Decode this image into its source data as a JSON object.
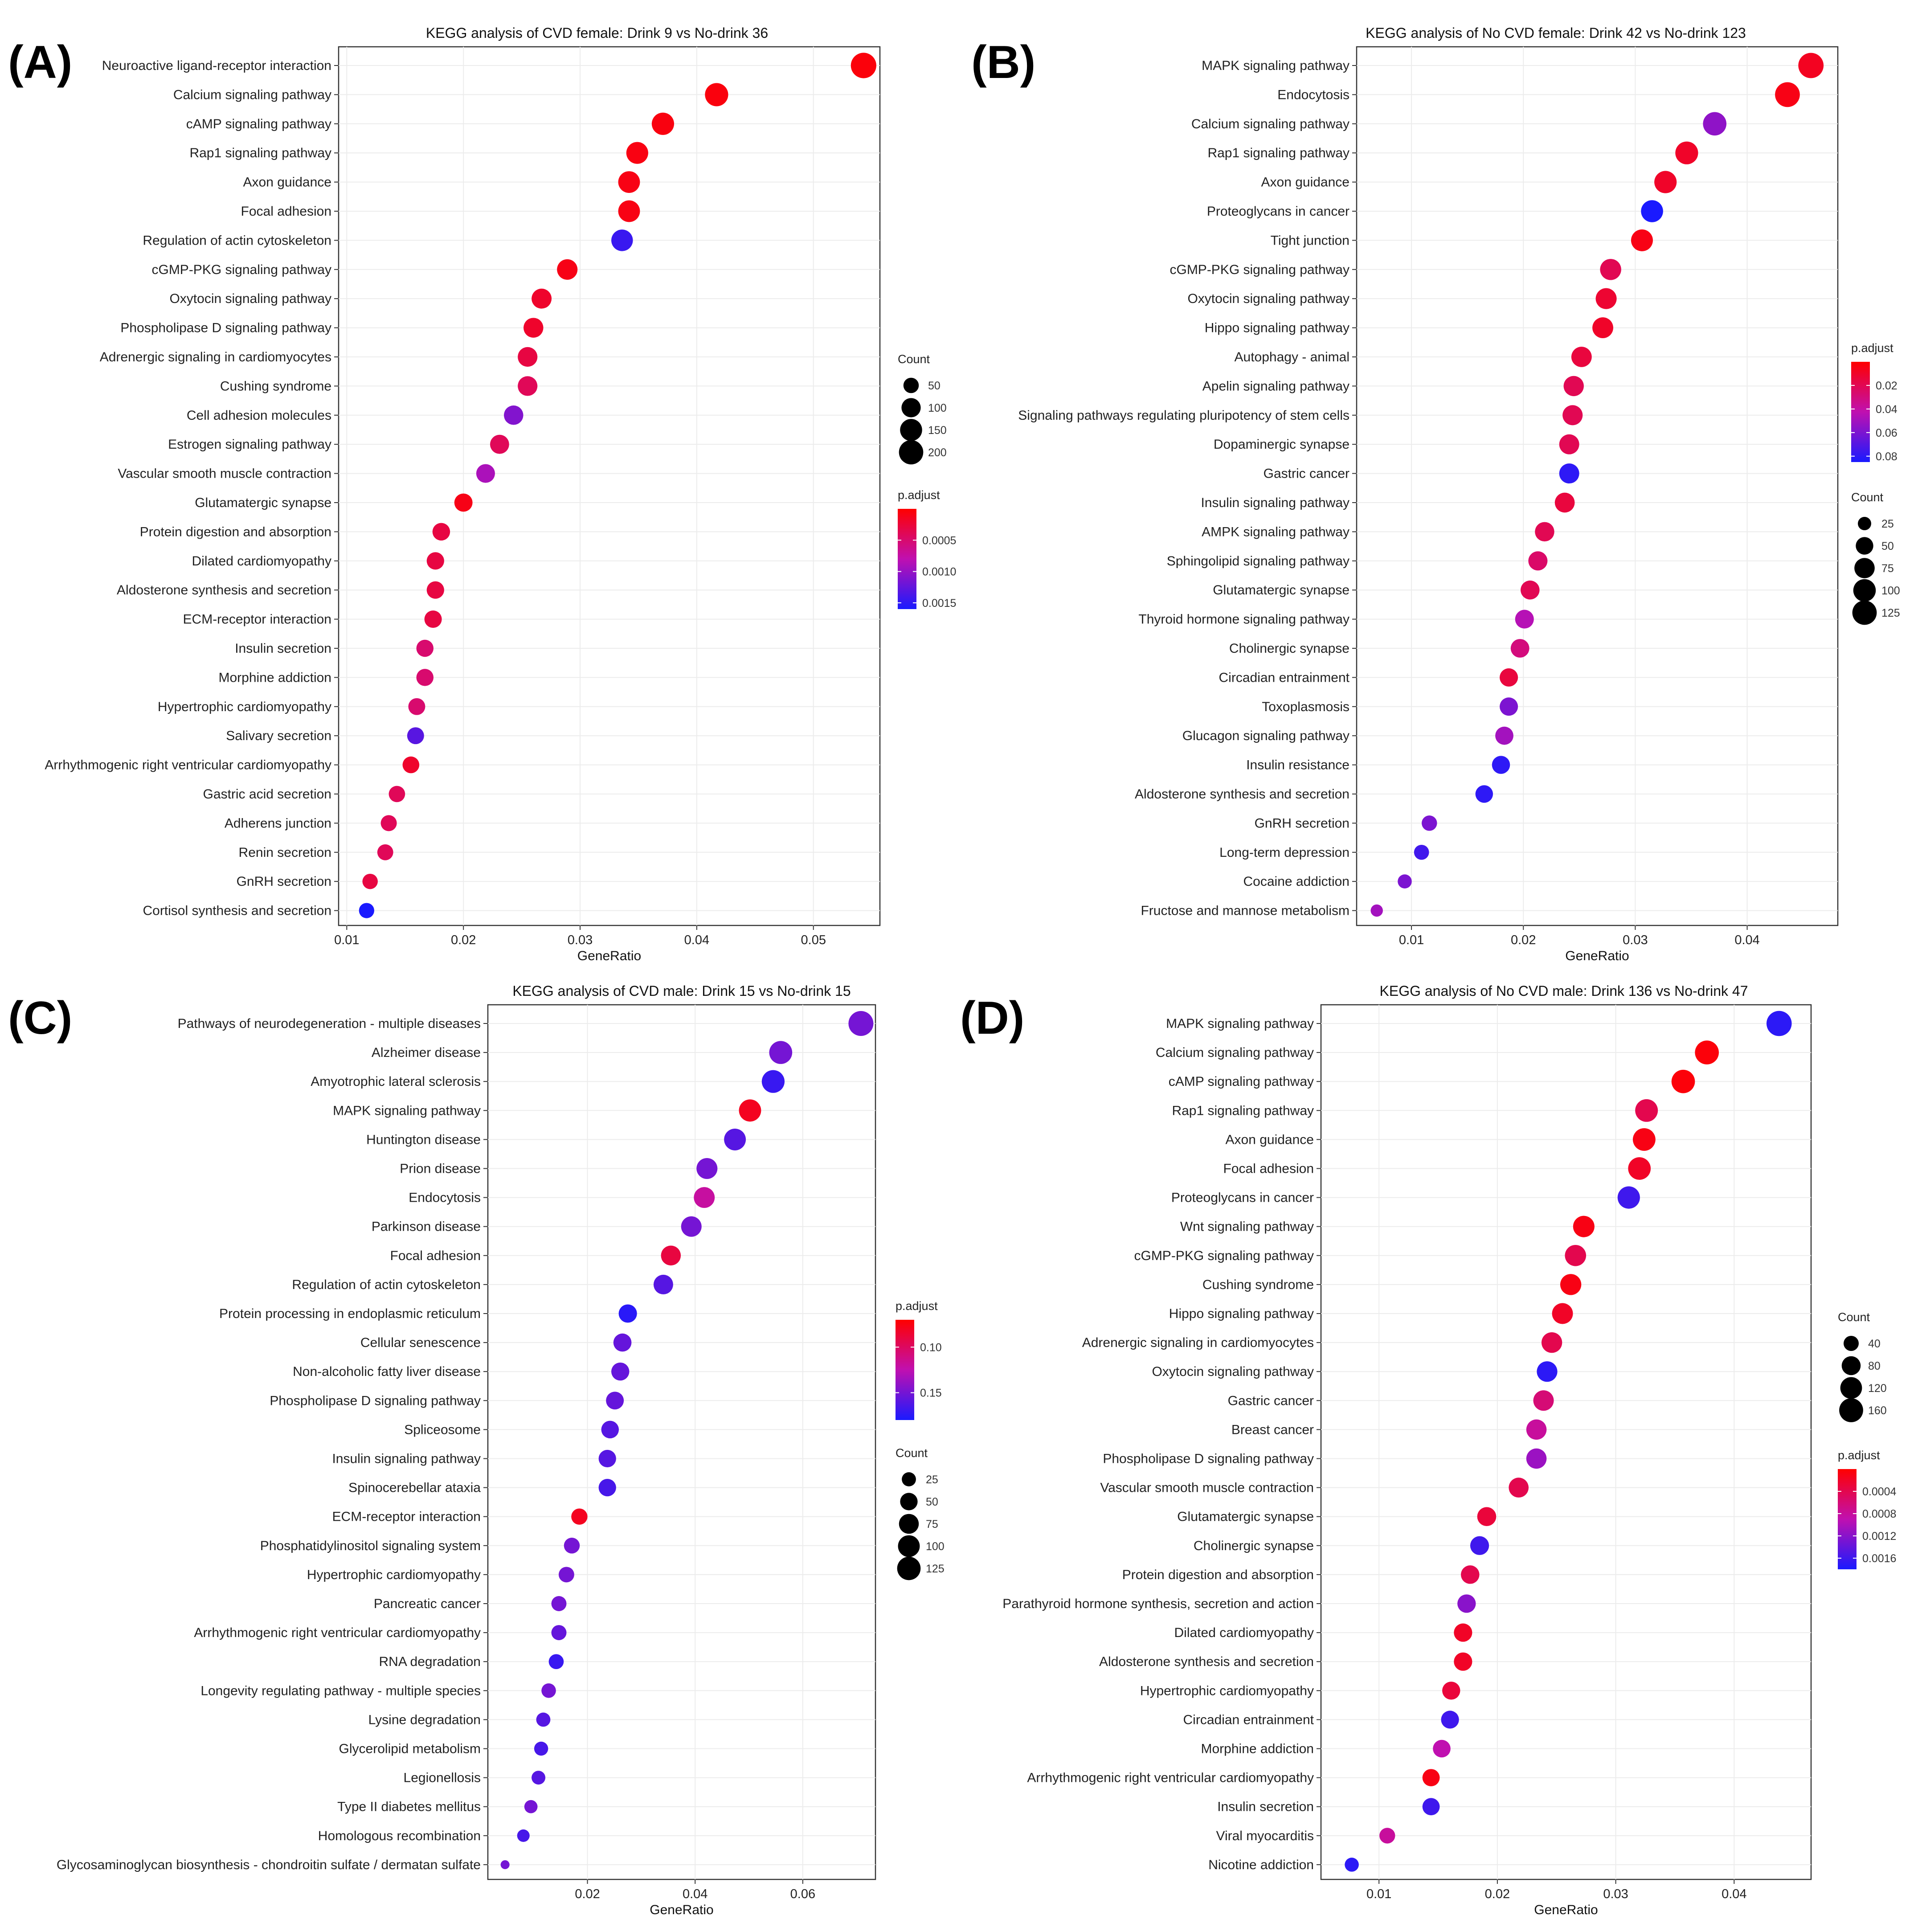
{
  "colors": {
    "low_p": "#ff0000",
    "mid_p": "#c010b0",
    "high_p": "#1a1aff",
    "grid": "#ececec"
  },
  "chart_data": [
    {
      "panel_label": "(A)",
      "type": "scatter",
      "title": "KEGG analysis of CVD female: Drink 9 vs No-drink 36",
      "xlabel": "GeneRatio",
      "xlim": [
        0.0093,
        0.0557
      ],
      "xticks": [
        0.01,
        0.02,
        0.03,
        0.04,
        0.05
      ],
      "xtick_labels": [
        "0.01",
        "0.02",
        "0.03",
        "0.04",
        "0.05"
      ],
      "legend_order": [
        "size",
        "color"
      ],
      "size_legend": {
        "title": "Count",
        "values": [
          50,
          100,
          150,
          200
        ],
        "labels": [
          "50",
          "100",
          "150",
          "200"
        ],
        "range": [
          18,
          215
        ]
      },
      "color_legend": {
        "title": "p.adjust",
        "low": 0.0,
        "high": 0.0016,
        "ticks": [
          0.0005,
          0.001,
          0.0015
        ],
        "tick_labels": [
          "0.0005",
          "0.0010",
          "0.0015"
        ]
      },
      "categories": [
        "Neuroactive ligand-receptor interaction",
        "Calcium signaling pathway",
        "cAMP signaling pathway",
        "Rap1 signaling pathway",
        "Axon guidance",
        "Focal adhesion",
        "Regulation of actin cytoskeleton",
        "cGMP-PKG signaling pathway",
        "Oxytocin signaling pathway",
        "Phospholipase D signaling pathway",
        "Adrenergic signaling in cardiomyocytes",
        "Cushing syndrome",
        "Cell adhesion molecules",
        "Estrogen signaling pathway",
        "Vascular smooth muscle contraction",
        "Glutamatergic synapse",
        "Protein digestion and absorption",
        "Dilated cardiomyopathy",
        "Aldosterone synthesis and secretion",
        "ECM-receptor interaction",
        "Insulin secretion",
        "Morphine addiction",
        "Hypertrophic cardiomyopathy",
        "Salivary secretion",
        "Arrhythmogenic right ventricular cardiomyopathy",
        "Gastric acid secretion",
        "Adherens junction",
        "Renin secretion",
        "GnRH secretion",
        "Cortisol synthesis and secretion"
      ],
      "gene_ratio": [
        0.0543,
        0.0417,
        0.0371,
        0.0349,
        0.0342,
        0.0342,
        0.0336,
        0.0289,
        0.0267,
        0.026,
        0.0255,
        0.0255,
        0.0243,
        0.0231,
        0.0219,
        0.02,
        0.0181,
        0.0176,
        0.0176,
        0.0174,
        0.0167,
        0.0167,
        0.016,
        0.0159,
        0.0155,
        0.0143,
        0.0136,
        0.0133,
        0.012,
        0.0117
      ],
      "count": [
        228,
        175,
        156,
        147,
        144,
        144,
        141,
        121,
        112,
        109,
        107,
        107,
        102,
        97,
        92,
        84,
        76,
        74,
        74,
        73,
        70,
        70,
        67,
        67,
        65,
        60,
        57,
        56,
        50,
        49
      ],
      "p_adjust": [
        5e-05,
        6e-05,
        7e-05,
        8e-05,
        9e-05,
        9e-05,
        0.00145,
        0.0001,
        0.0002,
        0.0002,
        0.0003,
        0.0004,
        0.0011,
        0.0004,
        0.0009,
        0.0001,
        0.0003,
        0.0003,
        0.0003,
        0.0003,
        0.0005,
        0.0005,
        0.0005,
        0.0013,
        0.0002,
        0.0004,
        0.0004,
        0.0004,
        0.0003,
        0.0016
      ]
    },
    {
      "panel_label": "(B)",
      "type": "scatter",
      "title": "KEGG analysis of No CVD female: Drink 42 vs No-drink 123",
      "xlabel": "GeneRatio",
      "xlim": [
        0.0051,
        0.0481
      ],
      "xticks": [
        0.01,
        0.02,
        0.03,
        0.04
      ],
      "xtick_labels": [
        "0.01",
        "0.02",
        "0.03",
        "0.04"
      ],
      "legend_order": [
        "color",
        "size"
      ],
      "size_legend": {
        "title": "Count",
        "values": [
          25,
          50,
          75,
          100,
          125
        ],
        "labels": [
          "25",
          "50",
          "75",
          "100",
          "125"
        ],
        "range": [
          16,
          133
        ]
      },
      "color_legend": {
        "title": "p.adjust",
        "low": 0.0,
        "high": 0.085,
        "ticks": [
          0.02,
          0.04,
          0.06,
          0.08
        ],
        "tick_labels": [
          "0.02",
          "0.04",
          "0.06",
          "0.08"
        ]
      },
      "categories": [
        "MAPK signaling pathway",
        "Endocytosis",
        "Calcium signaling pathway",
        "Rap1 signaling pathway",
        "Axon guidance",
        "Proteoglycans in cancer",
        "Tight junction",
        "cGMP-PKG signaling pathway",
        "Oxytocin signaling pathway",
        "Hippo signaling pathway",
        "Autophagy - animal",
        "Apelin signaling pathway",
        "Signaling pathways regulating pluripotency of stem cells",
        "Dopaminergic synapse",
        "Gastric cancer",
        "Insulin signaling pathway",
        "AMPK signaling pathway",
        "Sphingolipid signaling pathway",
        "Glutamatergic synapse",
        "Thyroid hormone signaling pathway",
        "Cholinergic synapse",
        "Circadian entrainment",
        "Toxoplasmosis",
        "Glucagon signaling pathway",
        "Insulin resistance",
        "Aldosterone synthesis and secretion",
        "GnRH secretion",
        "Long-term depression",
        "Cocaine addiction",
        "Fructose and mannose metabolism"
      ],
      "gene_ratio": [
        0.0457,
        0.0436,
        0.0371,
        0.0346,
        0.0327,
        0.0315,
        0.0306,
        0.0278,
        0.0274,
        0.0271,
        0.0252,
        0.0245,
        0.0244,
        0.0241,
        0.0241,
        0.0237,
        0.0219,
        0.0213,
        0.0206,
        0.0201,
        0.0197,
        0.0187,
        0.0187,
        0.0183,
        0.018,
        0.0165,
        0.0116,
        0.0109,
        0.0094,
        0.0069
      ],
      "count": [
        138,
        131,
        112,
        104,
        98,
        95,
        92,
        84,
        82,
        81,
        76,
        74,
        73,
        72,
        72,
        71,
        66,
        64,
        62,
        60,
        59,
        56,
        56,
        55,
        54,
        50,
        35,
        33,
        28,
        21
      ],
      "p_adjust": [
        0.008,
        0.005,
        0.055,
        0.01,
        0.01,
        0.085,
        0.005,
        0.02,
        0.012,
        0.01,
        0.015,
        0.02,
        0.02,
        0.02,
        0.08,
        0.015,
        0.02,
        0.025,
        0.02,
        0.045,
        0.03,
        0.015,
        0.06,
        0.05,
        0.08,
        0.08,
        0.06,
        0.075,
        0.06,
        0.05
      ]
    },
    {
      "panel_label": "(C)",
      "type": "scatter",
      "title": "KEGG analysis of CVD male: Drink 15 vs No-drink 15",
      "xlabel": "GeneRatio",
      "xlim": [
        0.0015,
        0.0735
      ],
      "xticks": [
        0.02,
        0.04,
        0.06
      ],
      "xtick_labels": [
        "0.02",
        "0.04",
        "0.06"
      ],
      "legend_order": [
        "color",
        "size"
      ],
      "size_legend": {
        "title": "Count",
        "values": [
          25,
          50,
          75,
          100,
          125
        ],
        "labels": [
          "25",
          "50",
          "75",
          "100",
          "125"
        ],
        "range": [
          10,
          150
        ]
      },
      "color_legend": {
        "title": "p.adjust",
        "low": 0.07,
        "high": 0.18,
        "ticks": [
          0.1,
          0.15
        ],
        "tick_labels": [
          "0.10",
          "0.15"
        ]
      },
      "categories": [
        "Pathways of neurodegeneration - multiple diseases",
        "Alzheimer disease",
        "Amyotrophic lateral sclerosis",
        "MAPK signaling pathway",
        "Huntington disease",
        "Prion disease",
        "Endocytosis",
        "Parkinson disease",
        "Focal adhesion",
        "Regulation of actin cytoskeleton",
        "Protein processing in endoplasmic reticulum",
        "Cellular senescence",
        "Non-alcoholic fatty liver disease",
        "Phospholipase D signaling pathway",
        "Spliceosome",
        "Insulin signaling pathway",
        "Spinocerebellar ataxia",
        "ECM-receptor interaction",
        "Phosphatidylinositol signaling system",
        "Hypertrophic cardiomyopathy",
        "Pancreatic cancer",
        "Arrhythmogenic right ventricular cardiomyopathy",
        "RNA degradation",
        "Longevity regulating pathway - multiple species",
        "Lysine degradation",
        "Glycerolipid metabolism",
        "Legionellosis",
        "Type II diabetes mellitus",
        "Homologous recombination",
        "Glycosaminoglycan biosynthesis - chondroitin sulfate / dermatan sulfate"
      ],
      "gene_ratio": [
        0.0708,
        0.0559,
        0.0545,
        0.0502,
        0.0474,
        0.0422,
        0.0417,
        0.0393,
        0.0355,
        0.0341,
        0.0275,
        0.0265,
        0.0261,
        0.0251,
        0.0242,
        0.0237,
        0.0237,
        0.0185,
        0.0171,
        0.0161,
        0.0147,
        0.0147,
        0.0142,
        0.0128,
        0.0118,
        0.0114,
        0.0109,
        0.0095,
        0.0081,
        0.0047
      ],
      "count": [
        150,
        118,
        115,
        106,
        100,
        89,
        88,
        83,
        75,
        72,
        58,
        56,
        55,
        53,
        51,
        50,
        50,
        39,
        36,
        34,
        31,
        31,
        30,
        27,
        25,
        24,
        23,
        20,
        17,
        10
      ],
      "p_adjust": [
        0.15,
        0.15,
        0.17,
        0.08,
        0.16,
        0.15,
        0.12,
        0.15,
        0.09,
        0.16,
        0.175,
        0.155,
        0.155,
        0.155,
        0.16,
        0.16,
        0.165,
        0.08,
        0.15,
        0.15,
        0.15,
        0.155,
        0.17,
        0.15,
        0.16,
        0.165,
        0.16,
        0.15,
        0.165,
        0.15
      ]
    },
    {
      "panel_label": "(D)",
      "type": "scatter",
      "title": "KEGG analysis of No CVD male: Drink 136 vs No-drink 47",
      "xlabel": "GeneRatio",
      "xlim": [
        0.0051,
        0.0465
      ],
      "xticks": [
        0.01,
        0.02,
        0.03,
        0.04
      ],
      "xtick_labels": [
        "0.01",
        "0.02",
        "0.03",
        "0.04"
      ],
      "legend_order": [
        "size",
        "color"
      ],
      "size_legend": {
        "title": "Count",
        "values": [
          40,
          80,
          120,
          160
        ],
        "labels": [
          "40",
          "80",
          "120",
          "160"
        ],
        "range": [
          15,
          180
        ]
      },
      "color_legend": {
        "title": "p.adjust",
        "low": 0.0,
        "high": 0.0018,
        "ticks": [
          0.0004,
          0.0008,
          0.0012,
          0.0016
        ],
        "tick_labels": [
          "0.0004",
          "0.0008",
          "0.0012",
          "0.0016"
        ]
      },
      "categories": [
        "MAPK signaling pathway",
        "Calcium signaling pathway",
        "cAMP signaling pathway",
        "Rap1 signaling pathway",
        "Axon guidance",
        "Focal adhesion",
        "Proteoglycans in cancer",
        "Wnt signaling pathway",
        "cGMP-PKG signaling pathway",
        "Cushing syndrome",
        "Hippo signaling pathway",
        "Adrenergic signaling in cardiomyocytes",
        "Oxytocin signaling pathway",
        "Gastric cancer",
        "Breast cancer",
        "Phospholipase D signaling pathway",
        "Vascular smooth muscle contraction",
        "Glutamatergic synapse",
        "Cholinergic synapse",
        "Protein digestion and absorption",
        "Parathyroid hormone synthesis, secretion and action",
        "Dilated cardiomyopathy",
        "Aldosterone synthesis and secretion",
        "Hypertrophic cardiomyopathy",
        "Circadian entrainment",
        "Morphine addiction",
        "Arrhythmogenic right ventricular cardiomyopathy",
        "Insulin secretion",
        "Viral myocarditis",
        "Nicotine addiction"
      ],
      "gene_ratio": [
        0.0438,
        0.0377,
        0.0357,
        0.0326,
        0.0324,
        0.032,
        0.0311,
        0.0273,
        0.0266,
        0.0262,
        0.0255,
        0.0246,
        0.0242,
        0.0239,
        0.0233,
        0.0233,
        0.0218,
        0.0191,
        0.0185,
        0.0177,
        0.0174,
        0.0171,
        0.0171,
        0.0161,
        0.016,
        0.0153,
        0.0144,
        0.0144,
        0.0107,
        0.0077
      ],
      "count": [
        185,
        159,
        150,
        137,
        136,
        135,
        131,
        115,
        112,
        110,
        107,
        103,
        102,
        101,
        98,
        98,
        92,
        80,
        78,
        74,
        73,
        72,
        72,
        68,
        67,
        64,
        60,
        60,
        45,
        32
      ],
      "p_adjust": [
        0.0017,
        5e-05,
        5e-05,
        0.0004,
        0.0001,
        0.0002,
        0.0016,
        0.0001,
        0.0004,
        0.0001,
        0.0002,
        0.0004,
        0.0017,
        0.0006,
        0.0008,
        0.0011,
        0.0004,
        0.0003,
        0.0016,
        0.0004,
        0.0012,
        0.0002,
        0.0002,
        0.0003,
        0.0016,
        0.0009,
        0.0001,
        0.0016,
        0.0008,
        0.0017
      ]
    }
  ]
}
